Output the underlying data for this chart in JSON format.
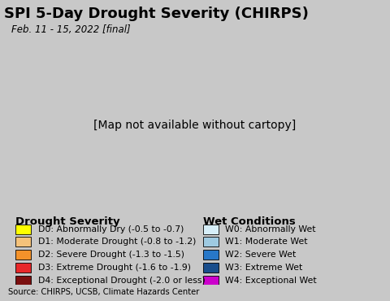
{
  "title": "SPI 5-Day Drought Severity (CHIRPS)",
  "subtitle": "Feb. 11 - 15, 2022 [final]",
  "source_text": "Source: CHIRPS, UCSB, Climate Hazards Center",
  "ocean_color": "#a8d8ea",
  "land_outside_color": "#d8d8d8",
  "legend_bg_color": "#c8c8c8",
  "title_bg_color": "#ffffff",
  "map_bg_color": "#a8d8ea",
  "drought_labels": [
    "D0: Abnormally Dry (-0.5 to -0.7)",
    "D1: Moderate Drought (-0.8 to -1.2)",
    "D2: Severe Drought (-1.3 to -1.5)",
    "D3: Extreme Drought (-1.6 to -1.9)",
    "D4: Exceptional Drought (-2.0 or less)"
  ],
  "drought_colors": [
    "#ffff00",
    "#f5c27a",
    "#f4922a",
    "#e8282a",
    "#7b0f0f"
  ],
  "wet_labels": [
    "W0: Abnormally Wet",
    "W1: Moderate Wet",
    "W2: Severe Wet",
    "W3: Extreme Wet",
    "W4: Exceptional Wet"
  ],
  "wet_colors": [
    "#d6eef8",
    "#9ecae1",
    "#2878c8",
    "#1a4e8c",
    "#cc00cc"
  ],
  "drought_title": "Drought Severity",
  "wet_title": "Wet Conditions",
  "us_lon_min": -125.0,
  "us_lon_max": -66.5,
  "us_lat_min": 24.5,
  "us_lat_max": 49.5
}
